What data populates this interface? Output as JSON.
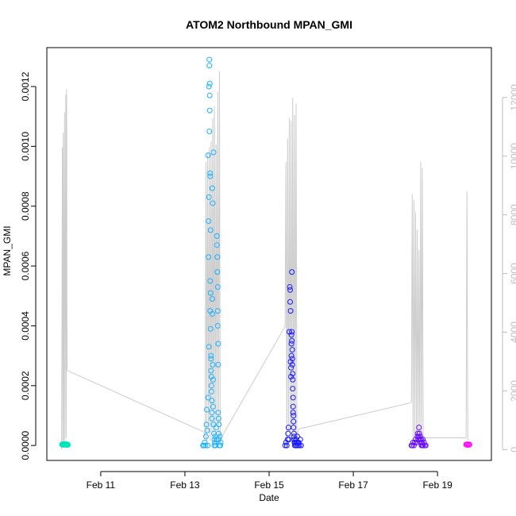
{
  "chart_data": {
    "type": "scatter",
    "title": "ATOM2 Northbound MPAN_GMI",
    "xlabel": "Date",
    "ylabel": "MPAN_GMI",
    "x_ticks": [
      "Feb 11",
      "Feb 13",
      "Feb 15",
      "Feb 17",
      "Feb 19"
    ],
    "x_tick_values": [
      11,
      13,
      15,
      17,
      19
    ],
    "xlim": [
      9.72,
      20.28
    ],
    "y_ticks": [
      "0.0000",
      "0.0002",
      "0.0004",
      "0.0006",
      "0.0008",
      "0.0010",
      "0.0012"
    ],
    "y_tick_values": [
      0,
      0.0002,
      0.0004,
      0.0006,
      0.0008,
      0.001,
      0.0012
    ],
    "ylim": [
      -5e-05,
      0.00133
    ],
    "y2_ticks": [
      "0",
      "2000",
      "4000",
      "6000",
      "8000",
      "10000",
      "12000"
    ],
    "y2_tick_values": [
      0,
      2000,
      4000,
      6000,
      8000,
      10000,
      12000
    ],
    "y2lim": [
      -370,
      13700
    ],
    "colors": {
      "axis": "#000000",
      "right_axis": "#bdbdbd",
      "altitude_line": "#cccccc",
      "flight_1": "#00e5b8",
      "flight_2": "#1eb0ff",
      "flight_3": "#1a1aff",
      "flight_4": "#6a10ff",
      "flight_5": "#ff00ff"
    },
    "series": [
      {
        "color": "#00e5b8",
        "x": [
          10.08,
          10.09,
          10.1,
          10.11,
          10.12,
          10.13,
          10.14,
          10.15,
          10.16,
          10.17,
          10.18,
          10.19,
          10.2,
          10.21,
          10.22
        ],
        "y": [
          3e-06,
          4e-06,
          2e-06,
          5e-06,
          3e-06,
          2e-06,
          4e-06,
          3e-06,
          5e-06,
          2e-06,
          3e-06,
          4e-06,
          2e-06,
          3e-06,
          2e-06
        ]
      },
      {
        "color": "#1eb0ff",
        "x": [
          13.43,
          13.45,
          13.47,
          13.49,
          13.5,
          13.51,
          13.52,
          13.53,
          13.54,
          13.55,
          13.55,
          13.56,
          13.56,
          13.57,
          13.57,
          13.57,
          13.58,
          13.58,
          13.58,
          13.59,
          13.59,
          13.59,
          13.6,
          13.6,
          13.6,
          13.6,
          13.61,
          13.61,
          13.61,
          13.62,
          13.62,
          13.62,
          13.63,
          13.63,
          13.63,
          13.64,
          13.64,
          13.64,
          13.65,
          13.65,
          13.65,
          13.66,
          13.66,
          13.67,
          13.67,
          13.68,
          13.68,
          13.69,
          13.7,
          13.7,
          13.71,
          13.72,
          13.73,
          13.74,
          13.75,
          13.76,
          13.76,
          13.77,
          13.77,
          13.78,
          13.78,
          13.78,
          13.79,
          13.79,
          13.79,
          13.8,
          13.8,
          13.8,
          13.81,
          13.82,
          13.83,
          13.84,
          13.85
        ],
        "y": [
          0.0,
          0.0,
          1e-05,
          0.0,
          3e-05,
          7e-05,
          0.00012,
          5e-05,
          0.0,
          0.00016,
          0.00097,
          0.00075,
          0.00063,
          0.00033,
          0.00083,
          0.0012,
          0.00129,
          0.00127,
          0.00105,
          0.00112,
          0.00117,
          0.00121,
          0.0009,
          0.00091,
          0.00055,
          0.00045,
          0.00051,
          0.00072,
          0.00039,
          0.00025,
          0.0003,
          0.00029,
          0.0002,
          0.00018,
          0.00023,
          0.00015,
          0.00011,
          9e-05,
          0.00044,
          0.00049,
          0.00086,
          0.00081,
          0.00027,
          0.00022,
          0.00013,
          7e-05,
          0.00098,
          4e-05,
          2e-05,
          0.0,
          1e-05,
          3e-05,
          0.0,
          6e-05,
          2e-05,
          0.00067,
          0.0007,
          0.00063,
          0.00058,
          0.0004,
          0.00045,
          0.00053,
          0.00027,
          0.00034,
          0.00011,
          9e-05,
          4e-05,
          2e-05,
          7e-05,
          0.0,
          3e-05,
          0.0,
          1e-05
        ]
      },
      {
        "color": "#1a1aff",
        "x": [
          15.38,
          15.4,
          15.42,
          15.44,
          15.45,
          15.46,
          15.47,
          15.48,
          15.49,
          15.5,
          15.5,
          15.51,
          15.51,
          15.52,
          15.52,
          15.53,
          15.53,
          15.53,
          15.54,
          15.54,
          15.54,
          15.55,
          15.55,
          15.55,
          15.56,
          15.56,
          15.56,
          15.57,
          15.57,
          15.57,
          15.58,
          15.58,
          15.58,
          15.59,
          15.59,
          15.6,
          15.6,
          15.61,
          15.62,
          15.63,
          15.64,
          15.65,
          15.66,
          15.67,
          15.68,
          15.69,
          15.7,
          15.72,
          15.74,
          15.76
        ],
        "y": [
          0.0,
          1e-05,
          0.0,
          2e-05,
          4e-05,
          6e-05,
          2e-05,
          0.00038,
          0.00053,
          0.00048,
          0.00052,
          0.00045,
          0.00028,
          0.00026,
          0.00023,
          0.0003,
          0.00034,
          0.00037,
          0.00035,
          0.00038,
          0.00058,
          0.00032,
          0.00029,
          0.00027,
          0.00024,
          0.00022,
          0.00019,
          0.00016,
          0.00013,
          0.00011,
          0.0001,
          8e-05,
          6e-05,
          4e-05,
          3e-05,
          2e-05,
          1e-05,
          0.0,
          1e-05,
          0.0,
          2e-05,
          1e-05,
          0.0,
          3e-05,
          1e-05,
          0.0,
          1e-05,
          0.0,
          2e-05,
          0.0
        ]
      },
      {
        "color": "#6a10ff",
        "x": [
          18.38,
          18.4,
          18.42,
          18.44,
          18.46,
          18.48,
          18.5,
          18.52,
          18.53,
          18.54,
          18.55,
          18.56,
          18.57,
          18.58,
          18.59,
          18.6,
          18.61,
          18.62,
          18.63,
          18.64,
          18.65,
          18.66,
          18.68,
          18.7,
          18.72
        ],
        "y": [
          0.0,
          0.0,
          1e-05,
          0.0,
          1e-05,
          2e-05,
          1e-05,
          3e-05,
          4e-05,
          2e-05,
          3e-05,
          6e-05,
          4e-05,
          2e-05,
          3e-05,
          1e-05,
          2e-05,
          0.0,
          1e-05,
          0.0,
          2e-05,
          0.0,
          1e-05,
          0.0,
          0.0
        ]
      },
      {
        "color": "#ff00ff",
        "x": [
          19.68,
          19.7,
          19.72,
          19.74,
          19.76
        ],
        "y": [
          3e-06,
          2e-06,
          4e-06,
          2e-06,
          3e-06
        ]
      }
    ],
    "altitude_segments": [
      [
        [
          10.07,
          0
        ],
        [
          10.09,
          10300
        ],
        [
          10.1,
          300
        ],
        [
          10.11,
          10800
        ],
        [
          10.12,
          200
        ],
        [
          10.14,
          11500
        ],
        [
          10.15,
          300
        ],
        [
          10.17,
          12100
        ],
        [
          10.18,
          400
        ],
        [
          10.19,
          12300
        ],
        [
          10.2,
          2700
        ]
      ],
      [
        [
          13.45,
          600
        ],
        [
          13.48,
          400
        ],
        [
          13.5,
          9800
        ],
        [
          13.52,
          300
        ],
        [
          13.54,
          10100
        ],
        [
          13.56,
          600
        ],
        [
          13.58,
          10300
        ],
        [
          13.6,
          300
        ],
        [
          13.62,
          10500
        ],
        [
          13.64,
          600
        ],
        [
          13.66,
          11300
        ],
        [
          13.68,
          500
        ],
        [
          13.7,
          11700
        ],
        [
          13.72,
          300
        ],
        [
          13.74,
          10400
        ],
        [
          13.76,
          800
        ],
        [
          13.78,
          12200
        ],
        [
          13.8,
          300
        ],
        [
          13.82,
          12900
        ],
        [
          13.84,
          200
        ],
        [
          13.86,
          400
        ]
      ],
      [
        [
          15.38,
          4200
        ],
        [
          15.4,
          9800
        ],
        [
          15.42,
          200
        ],
        [
          15.44,
          10600
        ],
        [
          15.46,
          600
        ],
        [
          15.48,
          11300
        ],
        [
          15.5,
          300
        ],
        [
          15.52,
          11200
        ],
        [
          15.54,
          700
        ],
        [
          15.56,
          12000
        ],
        [
          15.58,
          400
        ],
        [
          15.6,
          11400
        ],
        [
          15.62,
          300
        ],
        [
          15.64,
          11800
        ],
        [
          15.66,
          400
        ],
        [
          15.7,
          700
        ]
      ],
      [
        [
          18.38,
          1600
        ],
        [
          18.4,
          8700
        ],
        [
          18.42,
          300
        ],
        [
          18.44,
          8500
        ],
        [
          18.46,
          500
        ],
        [
          18.48,
          8100
        ],
        [
          18.5,
          300
        ],
        [
          18.52,
          7500
        ],
        [
          18.54,
          400
        ],
        [
          18.56,
          6800
        ],
        [
          18.58,
          500
        ],
        [
          18.6,
          9800
        ],
        [
          18.62,
          300
        ],
        [
          18.64,
          9600
        ],
        [
          18.66,
          200
        ],
        [
          18.68,
          400
        ]
      ],
      [
        [
          19.68,
          400
        ],
        [
          19.7,
          8800
        ],
        [
          19.72,
          300
        ]
      ]
    ],
    "altitude_bridges": [
      [
        [
          10.2,
          2700
        ],
        [
          13.45,
          600
        ]
      ],
      [
        [
          13.86,
          400
        ],
        [
          15.38,
          4200
        ]
      ],
      [
        [
          15.7,
          700
        ],
        [
          18.38,
          1600
        ]
      ],
      [
        [
          18.68,
          400
        ],
        [
          19.68,
          400
        ]
      ]
    ]
  }
}
